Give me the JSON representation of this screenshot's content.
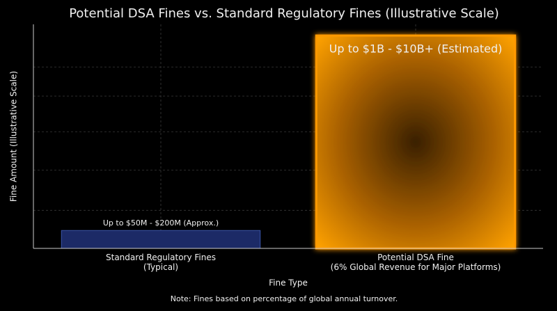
{
  "chart_data": {
    "type": "bar",
    "title": "Potential DSA Fines vs. Standard Regulatory Fines (Illustrative Scale)",
    "x_label": "Fine Type",
    "y_label": "Fine Amount (Illustrative Scale)",
    "categories": [
      "Standard Regulatory Fines\n(Typical)",
      "Potential DSA Fine\n(6% Global Revenue for Major Platforms)"
    ],
    "values": [
      8,
      95
    ],
    "colors": [
      "#1c2a66",
      "#ff9900"
    ],
    "annotations": [
      "Up to $50M - $200M (Approx.)",
      "Up to $1B - $10B+ (Estimated)"
    ],
    "note": "Note: Fines based on percentage of global annual turnover.",
    "ylim": [
      0,
      100
    ],
    "yticks": [
      17,
      35,
      52,
      68,
      81
    ],
    "grid": true
  }
}
